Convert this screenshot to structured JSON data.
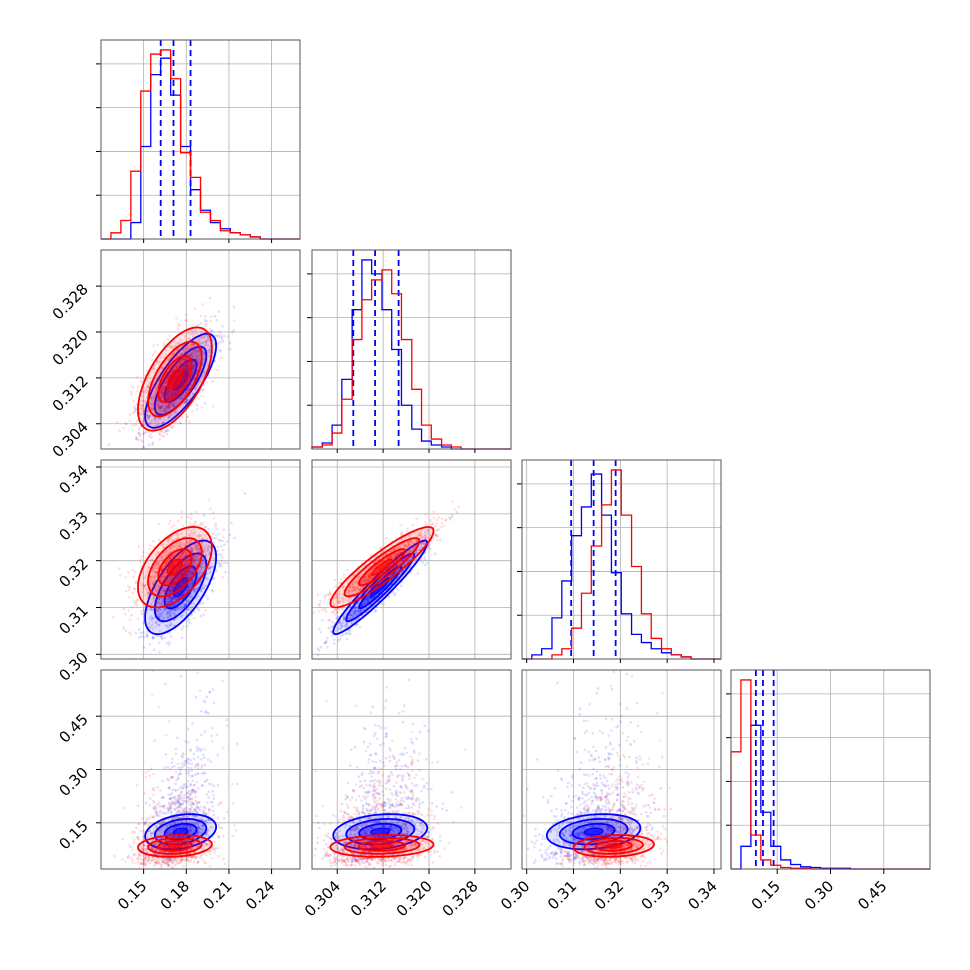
{
  "chart_data": {
    "type": "scatter",
    "layout": "corner-plot",
    "parameters": 4,
    "colors": {
      "series_1": "#0000ff",
      "series_2": "#ff0000",
      "grid": "#b0b0b0"
    },
    "grid": true,
    "tick_labels": {
      "p1": [
        "0.15",
        "0.18",
        "0.21",
        "0.24"
      ],
      "p2": [
        "0.304",
        "0.312",
        "0.320",
        "0.328"
      ],
      "p3": [
        "0.30",
        "0.31",
        "0.32",
        "0.33",
        "0.34"
      ],
      "p4": [
        "0.15",
        "0.30",
        "0.45"
      ]
    },
    "ranges": {
      "p1": [
        0.12,
        0.26
      ],
      "p2": [
        0.2996,
        0.3343
      ],
      "p3": [
        0.299,
        0.3415
      ],
      "p4": [
        0.02,
        0.58
      ]
    },
    "series": [
      {
        "color": "#0000ff",
        "means": [
          0.176,
          0.3115,
          0.3143,
          0.125
        ],
        "sigmas": [
          0.0125,
          0.0041,
          0.005,
          0.045
        ],
        "correlations": {
          "p1_p2": 0.75,
          "p1_p3": 0.65,
          "p2_p3": 0.95,
          "p1_p4": 0.45,
          "p2_p4": 0.35,
          "p3_p4": 0.35
        },
        "quantile_lines": {
          "p1": [
            0.162,
            0.171,
            0.183
          ],
          "p2": [
            0.3068,
            0.3106,
            0.3147
          ],
          "p3": [
            0.3095,
            0.3143,
            0.319
          ],
          "p4": [
            0.09,
            0.11,
            0.14
          ]
        },
        "histograms": {
          "p1": {
            "edges": [
              0.12,
              0.127,
              0.134,
              0.141,
              0.148,
              0.155,
              0.162,
              0.169,
              0.176,
              0.183,
              0.19,
              0.197,
              0.204,
              0.211,
              0.218,
              0.225,
              0.232,
              0.239,
              0.246,
              0.253,
              0.26
            ],
            "counts": [
              0,
              0,
              0,
              8,
              45,
              80,
              88,
              70,
              45,
              24,
              14,
              8,
              5,
              3,
              2,
              1,
              0,
              0,
              0,
              0
            ]
          },
          "p2": {
            "edges": [
              0.2996,
              0.3014,
              0.3031,
              0.3048,
              0.3066,
              0.3083,
              0.31,
              0.3118,
              0.3135,
              0.3152,
              0.317,
              0.3187,
              0.3204,
              0.3222,
              0.3239,
              0.3256,
              0.3274,
              0.3291,
              0.3308,
              0.3326,
              0.3343
            ],
            "counts": [
              1,
              3,
              12,
              35,
              70,
              95,
              88,
              70,
              50,
              22,
              10,
              4,
              2,
              1,
              0,
              0,
              0,
              0,
              0,
              0
            ]
          },
          "p3": {
            "edges": [
              0.299,
              0.3011,
              0.3032,
              0.3054,
              0.3075,
              0.3096,
              0.3117,
              0.3138,
              0.316,
              0.3181,
              0.3202,
              0.3224,
              0.3245,
              0.3266,
              0.3288,
              0.3309,
              0.333,
              0.3351,
              0.3373,
              0.3394,
              0.3415
            ],
            "counts": [
              0,
              2,
              5,
              20,
              38,
              60,
              74,
              90,
              70,
              42,
              22,
              12,
              8,
              5,
              3,
              2,
              1,
              0,
              0,
              0
            ]
          },
          "p4": {
            "edges": [
              0.02,
              0.048,
              0.076,
              0.104,
              0.132,
              0.16,
              0.188,
              0.216,
              0.244,
              0.272,
              0.3,
              0.328,
              0.356,
              0.384,
              0.412,
              0.44,
              0.468,
              0.496,
              0.524,
              0.552,
              0.58
            ],
            "counts": [
              0,
              30,
              190,
              75,
              30,
              12,
              6,
              3,
              2,
              1,
              1,
              1,
              0,
              0,
              0,
              0,
              0,
              0,
              0,
              0
            ]
          }
        }
      },
      {
        "color": "#ff0000",
        "means": [
          0.172,
          0.3118,
          0.3186,
          0.085
        ],
        "sigmas": [
          0.013,
          0.0045,
          0.0043,
          0.028
        ],
        "correlations": {
          "p1_p2": 0.6,
          "p1_p3": 0.5,
          "p2_p3": 0.9,
          "p1_p4": 0.25,
          "p2_p4": 0.2,
          "p3_p4": 0.25
        },
        "quantile_lines": {},
        "histograms": {
          "p1": {
            "edges": [
              0.12,
              0.127,
              0.134,
              0.141,
              0.148,
              0.155,
              0.162,
              0.169,
              0.176,
              0.183,
              0.19,
              0.197,
              0.204,
              0.211,
              0.218,
              0.225,
              0.232,
              0.239,
              0.246,
              0.253,
              0.26
            ],
            "counts": [
              0,
              3,
              9,
              33,
              72,
              90,
              92,
              78,
              42,
              30,
              13,
              9,
              4,
              3,
              2,
              1,
              0,
              0,
              0,
              0
            ]
          },
          "p2": {
            "edges": [
              0.2996,
              0.3014,
              0.3031,
              0.3048,
              0.3066,
              0.3083,
              0.31,
              0.3118,
              0.3135,
              0.3152,
              0.317,
              0.3187,
              0.3204,
              0.3222,
              0.3239,
              0.3256,
              0.3274,
              0.3291,
              0.3308,
              0.3326,
              0.3343
            ],
            "counts": [
              1,
              2,
              8,
              25,
              55,
              75,
              85,
              90,
              78,
              55,
              30,
              12,
              5,
              2,
              1,
              0,
              0,
              0,
              0,
              0
            ]
          },
          "p3": {
            "edges": [
              0.299,
              0.3011,
              0.3032,
              0.3054,
              0.3075,
              0.3096,
              0.3117,
              0.3138,
              0.316,
              0.3181,
              0.3202,
              0.3224,
              0.3245,
              0.3266,
              0.3288,
              0.3309,
              0.333,
              0.3351,
              0.3373,
              0.3394,
              0.3415
            ],
            "counts": [
              0,
              0,
              0,
              2,
              5,
              15,
              32,
              55,
              75,
              92,
              70,
              45,
              22,
              10,
              5,
              2,
              1,
              0,
              0,
              0
            ]
          },
          "p4": {
            "edges": [
              0.02,
              0.048,
              0.076,
              0.104,
              0.132,
              0.16,
              0.188,
              0.216,
              0.244,
              0.272,
              0.3,
              0.328,
              0.356,
              0.384,
              0.412,
              0.44,
              0.468,
              0.496,
              0.524,
              0.552,
              0.58
            ],
            "counts": [
              155,
              250,
              45,
              12,
              5,
              2,
              1,
              1,
              0,
              0,
              0,
              0,
              0,
              0,
              0,
              0,
              0,
              0,
              0,
              0
            ]
          }
        }
      }
    ]
  }
}
